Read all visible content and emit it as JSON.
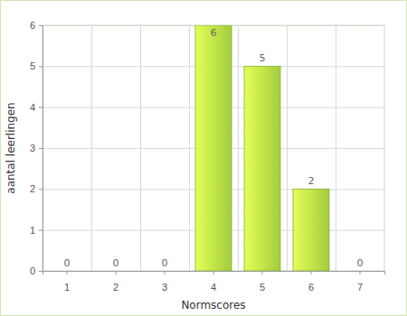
{
  "chart_data": {
    "type": "bar",
    "x_label": "Normscores",
    "y_label": "aantal leerlingen",
    "categories": [
      "1",
      "2",
      "3",
      "4",
      "5",
      "6",
      "7"
    ],
    "values": [
      0,
      0,
      0,
      6,
      5,
      2,
      0
    ],
    "color": "#b8e846",
    "ylim": [
      0,
      6
    ],
    "yticks": [
      0,
      1,
      2,
      3,
      4,
      5,
      6
    ],
    "grid": true,
    "data_labels": true
  }
}
